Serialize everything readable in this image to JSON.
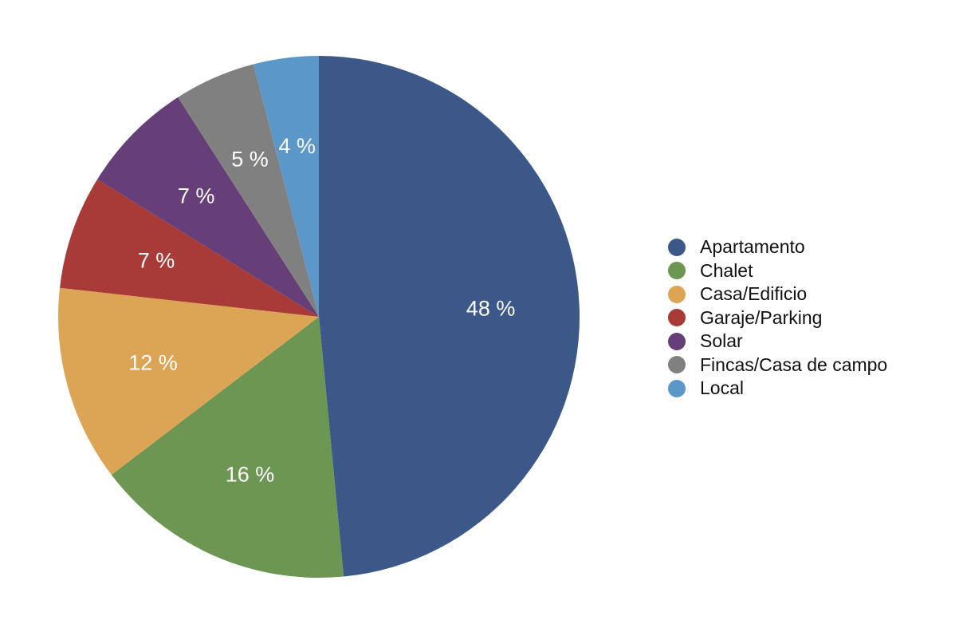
{
  "chart_data": {
    "type": "pie",
    "title": "",
    "slices": [
      {
        "label": "Apartamento",
        "value": 48,
        "display": "48 %",
        "color": "#3c5888"
      },
      {
        "label": "Chalet",
        "value": 16,
        "display": "16 %",
        "color": "#6c9652"
      },
      {
        "label": "Casa/Edificio",
        "value": 12,
        "display": "12 %",
        "color": "#dca455"
      },
      {
        "label": "Garaje/Parking",
        "value": 7,
        "display": "7 %",
        "color": "#a83a37"
      },
      {
        "label": "Solar",
        "value": 7,
        "display": "7 %",
        "color": "#673f78"
      },
      {
        "label": "Fincas/Casa de campo",
        "value": 5,
        "display": "5 %",
        "color": "#808080"
      },
      {
        "label": "Local",
        "value": 4,
        "display": "4 %",
        "color": "#5b98c9"
      }
    ],
    "legend_position": "right"
  }
}
